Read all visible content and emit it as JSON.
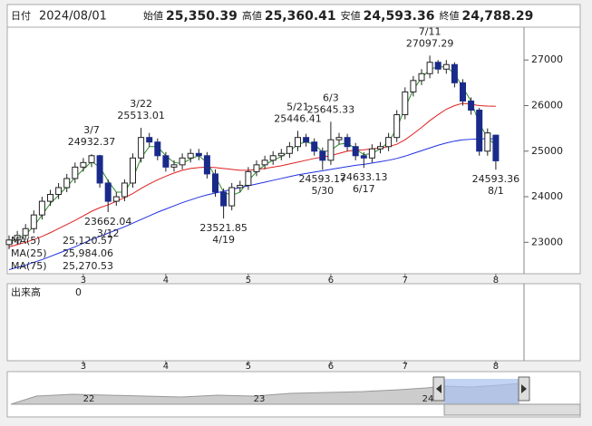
{
  "chart_data": {
    "type": "candlestick",
    "header": {
      "date_label": "日付",
      "date": "2024/08/01",
      "items": [
        {
          "name": "始値",
          "value": 25350.39,
          "label": "25,350.39",
          "color": "#000000"
        },
        {
          "name": "高値",
          "value": 25360.41,
          "label": "25,360.41",
          "color": "#d01010"
        },
        {
          "name": "安値",
          "value": 24593.36,
          "label": "24,593.36",
          "color": "#108a10"
        },
        {
          "name": "終値",
          "value": 24788.29,
          "label": "24,788.29",
          "color": "#000000"
        }
      ]
    },
    "categories": [
      null,
      null,
      null,
      null,
      null,
      null,
      null,
      null,
      null,
      "3",
      null,
      null,
      null,
      null,
      null,
      null,
      null,
      null,
      null,
      "4",
      null,
      null,
      null,
      null,
      null,
      null,
      null,
      null,
      null,
      "5",
      null,
      null,
      null,
      null,
      null,
      null,
      null,
      null,
      null,
      "6",
      null,
      null,
      null,
      null,
      null,
      null,
      null,
      null,
      "7",
      null,
      null,
      null,
      null,
      null,
      null,
      null,
      null,
      null,
      null,
      "8"
    ],
    "open": [
      22950,
      23050,
      23150,
      23300,
      23600,
      23900,
      24050,
      24200,
      24400,
      24650,
      24750,
      24900,
      24300,
      23900,
      24000,
      24300,
      24850,
      25300,
      25200,
      24900,
      24650,
      24700,
      24850,
      24950,
      24900,
      24500,
      24100,
      23800,
      24200,
      24250,
      24550,
      24700,
      24800,
      24900,
      24950,
      25100,
      25300,
      25200,
      25000,
      24800,
      25250,
      25300,
      25100,
      24900,
      24850,
      25050,
      25100,
      25300,
      25800,
      26300,
      26550,
      26700,
      26950,
      26800,
      26900,
      26500,
      26100,
      25900,
      25000,
      25350.39
    ],
    "high": [
      23150,
      23250,
      23400,
      23700,
      24000,
      24150,
      24300,
      24500,
      24750,
      24850,
      24932.37,
      24920,
      24380,
      24100,
      24380,
      24950,
      25513.01,
      25400,
      25280,
      24980,
      24800,
      24950,
      25050,
      25050,
      24980,
      24600,
      24180,
      24300,
      24350,
      24650,
      24800,
      24900,
      25000,
      25050,
      25200,
      25446.41,
      25380,
      25280,
      25080,
      25645.33,
      25400,
      25380,
      25180,
      24980,
      25150,
      25200,
      25400,
      25900,
      26400,
      26650,
      26800,
      27097.29,
      27000,
      27000,
      26950,
      26580,
      26180,
      25950,
      25500,
      25360.41
    ],
    "low": [
      22850,
      22950,
      23050,
      23200,
      23500,
      23800,
      23950,
      24100,
      24300,
      24550,
      24650,
      24200,
      23662.04,
      23800,
      23900,
      24200,
      24750,
      25100,
      24800,
      24550,
      24550,
      24600,
      24750,
      24800,
      24400,
      24000,
      23521.85,
      23700,
      24100,
      24150,
      24450,
      24600,
      24700,
      24800,
      24850,
      25000,
      25100,
      24900,
      24593.17,
      24700,
      25150,
      25000,
      24800,
      24633.13,
      24750,
      24950,
      25000,
      25200,
      25700,
      26200,
      26450,
      26600,
      26700,
      26700,
      26400,
      26000,
      25800,
      24900,
      24900,
      24593.36
    ],
    "close": [
      23050,
      23150,
      23300,
      23600,
      23900,
      24050,
      24200,
      24400,
      24650,
      24750,
      24900,
      24300,
      23900,
      24000,
      24300,
      24850,
      25300,
      25200,
      24900,
      24650,
      24700,
      24850,
      24950,
      24900,
      24500,
      24100,
      23800,
      24200,
      24250,
      24550,
      24700,
      24800,
      24900,
      24950,
      25100,
      25300,
      25200,
      25000,
      24800,
      25250,
      25300,
      25100,
      24900,
      24850,
      25050,
      25100,
      25300,
      25800,
      26300,
      26550,
      26700,
      26950,
      26800,
      26900,
      26500,
      26100,
      25900,
      25000,
      25400,
      24788.29
    ],
    "up_color": "#ffffff",
    "down_color": "#1a2a8a",
    "series": [
      {
        "name": "MA(5)",
        "color": "#2e8b2e",
        "legend_value": {
          "value": 25120.57,
          "label": "25,120.57"
        },
        "values": [
          23000,
          23080,
          23170,
          23350,
          23600,
          23850,
          24030,
          24220,
          24420,
          24600,
          24770,
          24650,
          24350,
          24100,
          24100,
          24400,
          24850,
          25100,
          25100,
          24900,
          24750,
          24730,
          24830,
          24900,
          24750,
          24450,
          24100,
          24030,
          24100,
          24350,
          24550,
          24700,
          24800,
          24880,
          25000,
          25150,
          25200,
          25150,
          24980,
          25020,
          25150,
          25180,
          25050,
          24920,
          24950,
          25050,
          25200,
          25500,
          25950,
          26350,
          26600,
          26800,
          26850,
          26850,
          26700,
          26400,
          26100,
          25600,
          25300,
          25120.57
        ]
      },
      {
        "name": "MA(25)",
        "color": "#e02020",
        "legend_value": {
          "value": 25984.06,
          "label": "25,984.06"
        },
        "values": [
          22900,
          22950,
          23000,
          23060,
          23130,
          23210,
          23300,
          23390,
          23480,
          23580,
          23680,
          23760,
          23820,
          23900,
          23980,
          24070,
          24180,
          24280,
          24370,
          24450,
          24520,
          24580,
          24620,
          24640,
          24650,
          24640,
          24620,
          24600,
          24580,
          24580,
          24600,
          24620,
          24650,
          24680,
          24720,
          24760,
          24800,
          24840,
          24870,
          24900,
          24950,
          25000,
          25020,
          25030,
          25050,
          25070,
          25100,
          25150,
          25250,
          25380,
          25520,
          25670,
          25800,
          25920,
          26000,
          26050,
          26030,
          26000,
          25990,
          25984.06
        ]
      },
      {
        "name": "MA(75)",
        "color": "#2030e0",
        "legend_value": {
          "value": 25270.53,
          "label": "25,270.53"
        },
        "values": [
          22400,
          22450,
          22500,
          22560,
          22620,
          22690,
          22760,
          22830,
          22900,
          22980,
          23060,
          23130,
          23200,
          23270,
          23340,
          23420,
          23500,
          23580,
          23660,
          23730,
          23800,
          23870,
          23930,
          23990,
          24040,
          24080,
          24120,
          24160,
          24200,
          24240,
          24280,
          24320,
          24360,
          24400,
          24440,
          24480,
          24510,
          24540,
          24570,
          24600,
          24630,
          24660,
          24690,
          24710,
          24740,
          24770,
          24800,
          24840,
          24890,
          24950,
          25010,
          25070,
          25130,
          25180,
          25220,
          25250,
          25260,
          25270,
          25270,
          25270.53
        ]
      }
    ],
    "annotations": [
      {
        "at": 10,
        "date": "3/7",
        "value": 24932.37,
        "side": "above"
      },
      {
        "at": 12,
        "date": "3/12",
        "value": 23662.04,
        "side": "below"
      },
      {
        "at": 16,
        "date": "3/22",
        "value": 25513.01,
        "side": "above"
      },
      {
        "at": 26,
        "date": "4/19",
        "value": 23521.85,
        "side": "below"
      },
      {
        "at": 35,
        "date": "5/21",
        "value": 25446.41,
        "side": "above"
      },
      {
        "at": 38,
        "date": "5/30",
        "value": 24593.17,
        "side": "below"
      },
      {
        "at": 39,
        "date": "6/3",
        "value": 25645.33,
        "side": "above"
      },
      {
        "at": 43,
        "date": "6/17",
        "value": 24633.13,
        "side": "below"
      },
      {
        "at": 51,
        "date": "7/11",
        "value": 27097.29,
        "side": "above"
      },
      {
        "at": 59,
        "date": "8/1",
        "value": 24593.36,
        "side": "below"
      }
    ],
    "ylim": [
      22350,
      27720
    ],
    "yticks": [
      23000,
      24000,
      25000,
      26000,
      27000
    ],
    "volume_label": "出来高",
    "volume_ticks": [
      0
    ],
    "navigator_labels": [
      "22",
      "23",
      "24"
    ]
  }
}
